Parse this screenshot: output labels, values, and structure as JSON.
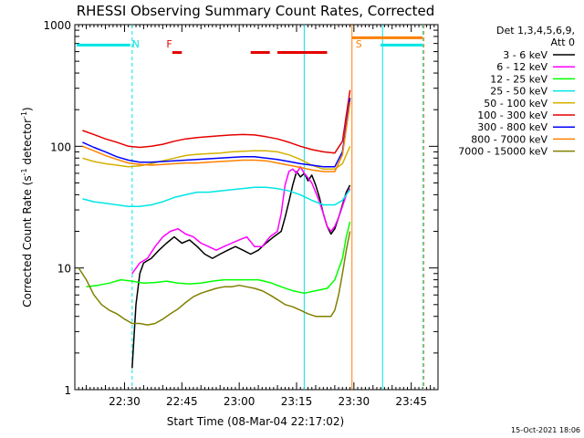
{
  "chart_data": {
    "type": "line",
    "title": "RHESSI Observing Summary Count Rates, Corrected",
    "xlabel": "Start Time (08-Mar-04 22:17:02)",
    "ylabel_main": "Corrected Count Rate (s",
    "ylabel_sup1": "-1",
    "ylabel_mid": " detector",
    "ylabel_sup2": "-1",
    "ylabel_end": ")",
    "y_scale": "log",
    "ylim": [
      1,
      1000
    ],
    "xlim_minutes": [
      0,
      95
    ],
    "x_ticks": [
      {
        "minute": 13,
        "label": "22:30"
      },
      {
        "minute": 28,
        "label": "22:45"
      },
      {
        "minute": 43,
        "label": "23:00"
      },
      {
        "minute": 58,
        "label": "23:15"
      },
      {
        "minute": 73,
        "label": "23:30"
      },
      {
        "minute": 88,
        "label": "23:45"
      }
    ],
    "y_ticks": [
      {
        "value": 1,
        "label": "1"
      },
      {
        "value": 10,
        "label": "10"
      },
      {
        "value": 100,
        "label": "100"
      },
      {
        "value": 1000,
        "label": "1000"
      }
    ],
    "legend": {
      "header1": "Det 1,3,4,5,6,9,",
      "header2": "Att 0",
      "placement": "right"
    },
    "series": [
      {
        "name": "3 - 6 keV",
        "color": "#000000",
        "points": [
          [
            15,
            1.5
          ],
          [
            16,
            5
          ],
          [
            17,
            9
          ],
          [
            18,
            11
          ],
          [
            20,
            12
          ],
          [
            22,
            14
          ],
          [
            24,
            16
          ],
          [
            26,
            18
          ],
          [
            28,
            16
          ],
          [
            30,
            17
          ],
          [
            32,
            15
          ],
          [
            34,
            13
          ],
          [
            36,
            12
          ],
          [
            38,
            13
          ],
          [
            40,
            14
          ],
          [
            42,
            15
          ],
          [
            44,
            14
          ],
          [
            46,
            13
          ],
          [
            48,
            14
          ],
          [
            50,
            16
          ],
          [
            52,
            18
          ],
          [
            54,
            20
          ],
          [
            55,
            26
          ],
          [
            56,
            35
          ],
          [
            57,
            48
          ],
          [
            58,
            62
          ],
          [
            59,
            56
          ],
          [
            60,
            60
          ],
          [
            61,
            52
          ],
          [
            62,
            58
          ],
          [
            63,
            48
          ],
          [
            64,
            38
          ],
          [
            65,
            28
          ],
          [
            66,
            22
          ],
          [
            67,
            19
          ],
          [
            68,
            21
          ],
          [
            69,
            26
          ],
          [
            70,
            33
          ],
          [
            71,
            42
          ],
          [
            72,
            48
          ]
        ]
      },
      {
        "name": "6 - 12 keV",
        "color": "#ff00ff",
        "points": [
          [
            15,
            9
          ],
          [
            17,
            11
          ],
          [
            19,
            12
          ],
          [
            21,
            15
          ],
          [
            23,
            18
          ],
          [
            25,
            20
          ],
          [
            27,
            21
          ],
          [
            29,
            19
          ],
          [
            31,
            18
          ],
          [
            33,
            16
          ],
          [
            35,
            15
          ],
          [
            37,
            14
          ],
          [
            39,
            15
          ],
          [
            41,
            16
          ],
          [
            43,
            17
          ],
          [
            45,
            18
          ],
          [
            47,
            15
          ],
          [
            49,
            15
          ],
          [
            51,
            18
          ],
          [
            53,
            20
          ],
          [
            54,
            28
          ],
          [
            55,
            48
          ],
          [
            56,
            62
          ],
          [
            57,
            65
          ],
          [
            58,
            60
          ],
          [
            59,
            68
          ],
          [
            60,
            60
          ],
          [
            61,
            55
          ],
          [
            62,
            50
          ],
          [
            63,
            42
          ],
          [
            64,
            35
          ],
          [
            65,
            28
          ],
          [
            66,
            22
          ],
          [
            67,
            20
          ],
          [
            68,
            22
          ],
          [
            69,
            26
          ],
          [
            70,
            32
          ],
          [
            71,
            40
          ],
          [
            72,
            45
          ]
        ]
      },
      {
        "name": "12 - 25 keV",
        "color": "#00ff00",
        "points": [
          [
            3,
            7
          ],
          [
            6,
            7.2
          ],
          [
            9,
            7.5
          ],
          [
            12,
            8
          ],
          [
            15,
            7.8
          ],
          [
            18,
            7.5
          ],
          [
            21,
            7.6
          ],
          [
            24,
            7.8
          ],
          [
            27,
            7.5
          ],
          [
            30,
            7.4
          ],
          [
            33,
            7.5
          ],
          [
            36,
            7.8
          ],
          [
            39,
            8
          ],
          [
            42,
            8
          ],
          [
            45,
            8
          ],
          [
            48,
            8
          ],
          [
            51,
            7.6
          ],
          [
            54,
            7
          ],
          [
            57,
            6.5
          ],
          [
            60,
            6.2
          ],
          [
            63,
            6.5
          ],
          [
            66,
            6.8
          ],
          [
            68,
            8
          ],
          [
            70,
            12
          ],
          [
            71,
            18
          ],
          [
            72,
            24
          ]
        ]
      },
      {
        "name": "25 - 50 keV",
        "color": "#00e5e5",
        "points": [
          [
            2,
            37
          ],
          [
            5,
            35
          ],
          [
            8,
            34
          ],
          [
            11,
            33
          ],
          [
            14,
            32
          ],
          [
            17,
            32
          ],
          [
            20,
            33
          ],
          [
            23,
            35
          ],
          [
            26,
            38
          ],
          [
            29,
            40
          ],
          [
            32,
            42
          ],
          [
            35,
            42
          ],
          [
            38,
            43
          ],
          [
            41,
            44
          ],
          [
            44,
            45
          ],
          [
            47,
            46
          ],
          [
            50,
            46
          ],
          [
            53,
            45
          ],
          [
            56,
            43
          ],
          [
            59,
            40
          ],
          [
            62,
            36
          ],
          [
            65,
            33
          ],
          [
            68,
            33
          ],
          [
            70,
            36
          ],
          [
            71,
            40
          ],
          [
            72,
            44
          ]
        ]
      },
      {
        "name": "50 - 100 keV",
        "color": "#d4b000",
        "points": [
          [
            2,
            80
          ],
          [
            5,
            75
          ],
          [
            8,
            72
          ],
          [
            11,
            70
          ],
          [
            14,
            68
          ],
          [
            17,
            69
          ],
          [
            20,
            72
          ],
          [
            23,
            76
          ],
          [
            26,
            80
          ],
          [
            29,
            84
          ],
          [
            32,
            86
          ],
          [
            35,
            87
          ],
          [
            38,
            88
          ],
          [
            41,
            90
          ],
          [
            44,
            91
          ],
          [
            47,
            92
          ],
          [
            50,
            92
          ],
          [
            53,
            90
          ],
          [
            56,
            85
          ],
          [
            59,
            78
          ],
          [
            62,
            70
          ],
          [
            65,
            65
          ],
          [
            68,
            65
          ],
          [
            70,
            72
          ],
          [
            71,
            85
          ],
          [
            72,
            100
          ]
        ]
      },
      {
        "name": "100 - 300 keV",
        "color": "#e60000",
        "points": [
          [
            2,
            135
          ],
          [
            5,
            125
          ],
          [
            8,
            115
          ],
          [
            11,
            108
          ],
          [
            14,
            100
          ],
          [
            17,
            98
          ],
          [
            20,
            100
          ],
          [
            23,
            104
          ],
          [
            26,
            110
          ],
          [
            29,
            115
          ],
          [
            32,
            118
          ],
          [
            35,
            120
          ],
          [
            38,
            122
          ],
          [
            41,
            124
          ],
          [
            44,
            125
          ],
          [
            47,
            124
          ],
          [
            50,
            120
          ],
          [
            53,
            115
          ],
          [
            56,
            108
          ],
          [
            59,
            100
          ],
          [
            62,
            94
          ],
          [
            65,
            90
          ],
          [
            68,
            88
          ],
          [
            70,
            110
          ],
          [
            71,
            180
          ],
          [
            72,
            290
          ]
        ]
      },
      {
        "name": "300 - 800 keV",
        "color": "#0000ff",
        "points": [
          [
            2,
            108
          ],
          [
            5,
            98
          ],
          [
            8,
            90
          ],
          [
            11,
            82
          ],
          [
            14,
            77
          ],
          [
            17,
            74
          ],
          [
            20,
            74
          ],
          [
            23,
            75
          ],
          [
            26,
            76
          ],
          [
            29,
            77
          ],
          [
            32,
            78
          ],
          [
            35,
            79
          ],
          [
            38,
            80
          ],
          [
            41,
            81
          ],
          [
            44,
            82
          ],
          [
            47,
            82
          ],
          [
            50,
            80
          ],
          [
            53,
            78
          ],
          [
            56,
            75
          ],
          [
            59,
            72
          ],
          [
            62,
            70
          ],
          [
            65,
            68
          ],
          [
            68,
            68
          ],
          [
            70,
            90
          ],
          [
            71,
            150
          ],
          [
            72,
            250
          ]
        ]
      },
      {
        "name": "800 - 7000 keV",
        "color": "#ff8000",
        "points": [
          [
            2,
            100
          ],
          [
            5,
            92
          ],
          [
            8,
            84
          ],
          [
            11,
            78
          ],
          [
            14,
            73
          ],
          [
            17,
            71
          ],
          [
            20,
            70
          ],
          [
            23,
            71
          ],
          [
            26,
            72
          ],
          [
            29,
            73
          ],
          [
            32,
            73
          ],
          [
            35,
            74
          ],
          [
            38,
            75
          ],
          [
            41,
            76
          ],
          [
            44,
            77
          ],
          [
            47,
            77
          ],
          [
            50,
            76
          ],
          [
            53,
            73
          ],
          [
            56,
            70
          ],
          [
            59,
            67
          ],
          [
            62,
            64
          ],
          [
            65,
            62
          ],
          [
            68,
            62
          ],
          [
            70,
            85
          ],
          [
            71,
            140
          ],
          [
            72,
            230
          ]
        ]
      },
      {
        "name": "7000 - 15000 keV",
        "color": "#808000",
        "points": [
          [
            1,
            10
          ],
          [
            3,
            8
          ],
          [
            5,
            6
          ],
          [
            7,
            5
          ],
          [
            9,
            4.5
          ],
          [
            11,
            4.2
          ],
          [
            13,
            3.8
          ],
          [
            15,
            3.5
          ],
          [
            17,
            3.5
          ],
          [
            19,
            3.4
          ],
          [
            21,
            3.5
          ],
          [
            23,
            3.8
          ],
          [
            25,
            4.2
          ],
          [
            27,
            4.6
          ],
          [
            29,
            5.2
          ],
          [
            31,
            5.8
          ],
          [
            33,
            6.2
          ],
          [
            35,
            6.5
          ],
          [
            37,
            6.8
          ],
          [
            39,
            7
          ],
          [
            41,
            7
          ],
          [
            43,
            7.2
          ],
          [
            45,
            7
          ],
          [
            47,
            6.8
          ],
          [
            49,
            6.5
          ],
          [
            51,
            6
          ],
          [
            53,
            5.5
          ],
          [
            55,
            5
          ],
          [
            57,
            4.8
          ],
          [
            59,
            4.5
          ],
          [
            61,
            4.2
          ],
          [
            63,
            4
          ],
          [
            65,
            4
          ],
          [
            67,
            4
          ],
          [
            68,
            4.5
          ],
          [
            69,
            6
          ],
          [
            70,
            9
          ],
          [
            71,
            14
          ],
          [
            72,
            20
          ]
        ]
      }
    ],
    "annotations": [
      {
        "text": "N",
        "minute": 14,
        "color": "#00e5e5"
      },
      {
        "text": "F",
        "minute": 23,
        "color": "#e60000"
      },
      {
        "text": "S",
        "minute": 72.5,
        "color": "#ff8000"
      }
    ],
    "flag_bars": [
      {
        "name": "N",
        "color": "#00e5e5",
        "value": 680,
        "segments": [
          [
            0.5,
            14.5
          ],
          [
            80,
            91
          ]
        ]
      },
      {
        "name": "F",
        "color": "#e60000",
        "value": 590,
        "segments": [
          [
            25.5,
            28
          ],
          [
            46,
            51
          ],
          [
            53,
            66
          ]
        ]
      },
      {
        "name": "S",
        "color": "#ff8000",
        "value": 780,
        "segments": [
          [
            72.5,
            91
          ]
        ]
      }
    ],
    "vlines": [
      {
        "minute": 15,
        "color": "#00e5e5",
        "style": "dashed"
      },
      {
        "minute": 60,
        "color": "#00e5e5",
        "style": "solid"
      },
      {
        "minute": 72.5,
        "color": "#ff8000",
        "style": "solid"
      },
      {
        "minute": 80.5,
        "color": "#00e5e5",
        "style": "solid"
      },
      {
        "minute": 91,
        "color": "#00e5e5",
        "style": "dashed"
      },
      {
        "minute": 91.3,
        "color": "#ff8000",
        "style": "dashed"
      }
    ],
    "grid": false,
    "legend_placement": "right"
  },
  "footer": {
    "date": "15-Oct-2021 18:06"
  }
}
